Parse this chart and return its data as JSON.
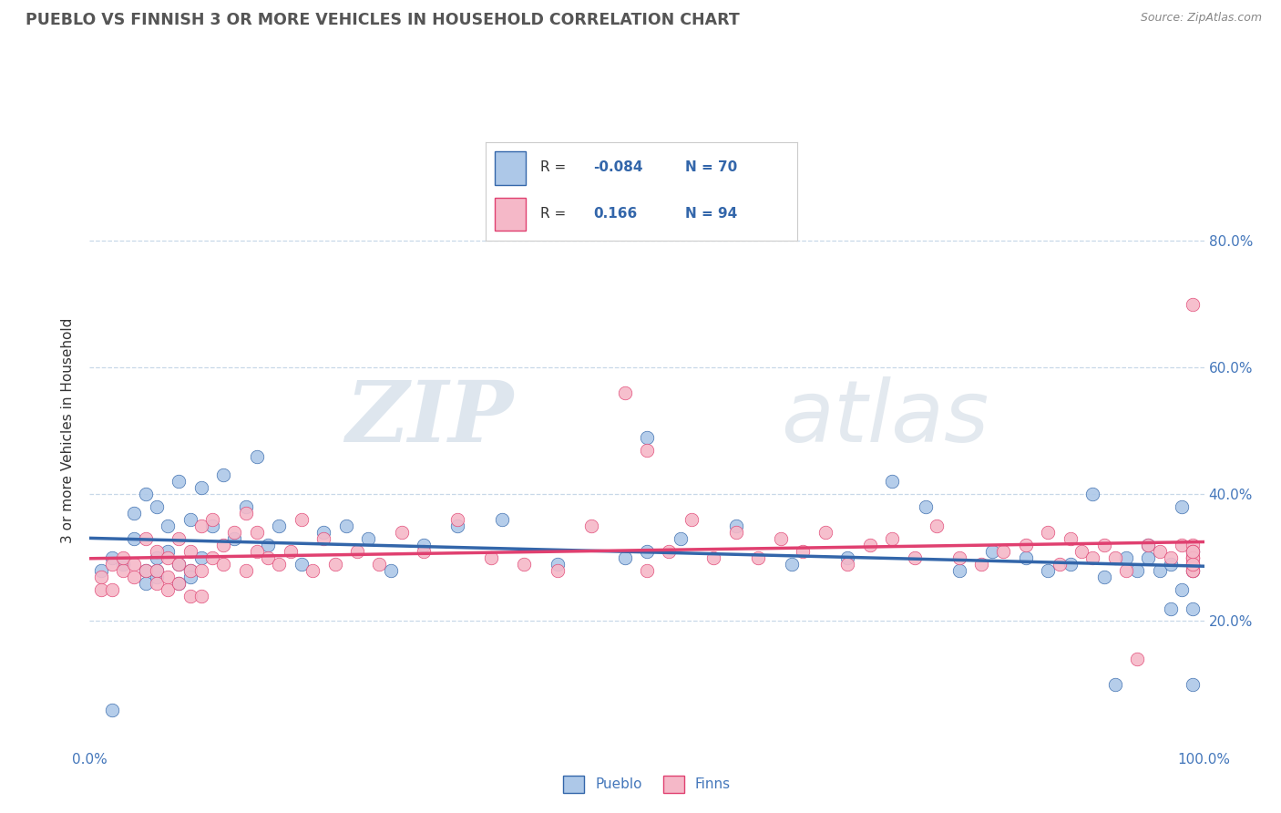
{
  "title": "PUEBLO VS FINNISH 3 OR MORE VEHICLES IN HOUSEHOLD CORRELATION CHART",
  "source": "Source: ZipAtlas.com",
  "ylabel": "3 or more Vehicles in Household",
  "watermark_zip": "ZIP",
  "watermark_atlas": "atlas",
  "pueblo_R": -0.084,
  "pueblo_N": 70,
  "finns_R": 0.166,
  "finns_N": 94,
  "pueblo_color": "#adc8e8",
  "finns_color": "#f5b8c8",
  "pueblo_line_color": "#3366aa",
  "finns_line_color": "#e04070",
  "background_color": "#ffffff",
  "grid_color": "#c8d8e8",
  "title_color": "#555555",
  "axis_label_color": "#4477bb",
  "right_tick_color": "#4477bb",
  "xlim": [
    0.0,
    1.0
  ],
  "ylim": [
    0.0,
    1.0
  ],
  "ytick_positions": [
    0.2,
    0.4,
    0.6,
    0.8
  ],
  "ytick_labels": [
    "20.0%",
    "40.0%",
    "60.0%",
    "80.0%"
  ],
  "pueblo_x": [
    0.02,
    0.03,
    0.04,
    0.04,
    0.05,
    0.05,
    0.05,
    0.06,
    0.06,
    0.06,
    0.07,
    0.07,
    0.08,
    0.08,
    0.08,
    0.09,
    0.09,
    0.09,
    0.1,
    0.1,
    0.11,
    0.12,
    0.13,
    0.14,
    0.15,
    0.16,
    0.17,
    0.19,
    0.21,
    0.23,
    0.25,
    0.27,
    0.3,
    0.33,
    0.37,
    0.42,
    0.48,
    0.53,
    0.58,
    0.63,
    0.68,
    0.72,
    0.75,
    0.78,
    0.81,
    0.84,
    0.86,
    0.88,
    0.9,
    0.91,
    0.92,
    0.93,
    0.94,
    0.95,
    0.95,
    0.96,
    0.97,
    0.97,
    0.98,
    0.98,
    0.99,
    0.99,
    0.99,
    0.99,
    0.99,
    0.01,
    0.02,
    0.06,
    0.5,
    0.5
  ],
  "pueblo_y": [
    0.3,
    0.29,
    0.37,
    0.33,
    0.4,
    0.28,
    0.26,
    0.38,
    0.3,
    0.27,
    0.35,
    0.31,
    0.42,
    0.29,
    0.26,
    0.36,
    0.28,
    0.27,
    0.41,
    0.3,
    0.35,
    0.43,
    0.33,
    0.38,
    0.46,
    0.32,
    0.35,
    0.29,
    0.34,
    0.35,
    0.33,
    0.28,
    0.32,
    0.35,
    0.36,
    0.29,
    0.3,
    0.33,
    0.35,
    0.29,
    0.3,
    0.42,
    0.38,
    0.28,
    0.31,
    0.3,
    0.28,
    0.29,
    0.4,
    0.27,
    0.1,
    0.3,
    0.28,
    0.32,
    0.3,
    0.28,
    0.29,
    0.22,
    0.25,
    0.38,
    0.22,
    0.1,
    0.29,
    0.31,
    0.28,
    0.28,
    0.06,
    0.28,
    0.49,
    0.31
  ],
  "finns_x": [
    0.01,
    0.02,
    0.03,
    0.03,
    0.04,
    0.04,
    0.05,
    0.05,
    0.06,
    0.06,
    0.06,
    0.07,
    0.07,
    0.07,
    0.08,
    0.08,
    0.08,
    0.09,
    0.09,
    0.09,
    0.1,
    0.1,
    0.1,
    0.11,
    0.11,
    0.12,
    0.12,
    0.13,
    0.14,
    0.14,
    0.15,
    0.15,
    0.16,
    0.17,
    0.18,
    0.19,
    0.2,
    0.21,
    0.22,
    0.24,
    0.26,
    0.28,
    0.3,
    0.33,
    0.36,
    0.39,
    0.42,
    0.45,
    0.48,
    0.5,
    0.52,
    0.54,
    0.56,
    0.58,
    0.6,
    0.62,
    0.64,
    0.66,
    0.68,
    0.7,
    0.72,
    0.74,
    0.76,
    0.78,
    0.8,
    0.82,
    0.84,
    0.86,
    0.87,
    0.88,
    0.89,
    0.9,
    0.91,
    0.92,
    0.93,
    0.94,
    0.95,
    0.96,
    0.97,
    0.98,
    0.99,
    0.99,
    0.99,
    0.99,
    0.99,
    0.99,
    0.99,
    0.99,
    0.99,
    0.99,
    0.99,
    0.01,
    0.02,
    0.5
  ],
  "finns_y": [
    0.27,
    0.29,
    0.28,
    0.3,
    0.29,
    0.27,
    0.33,
    0.28,
    0.31,
    0.28,
    0.26,
    0.3,
    0.27,
    0.25,
    0.33,
    0.29,
    0.26,
    0.31,
    0.28,
    0.24,
    0.35,
    0.28,
    0.24,
    0.36,
    0.3,
    0.32,
    0.29,
    0.34,
    0.37,
    0.28,
    0.31,
    0.34,
    0.3,
    0.29,
    0.31,
    0.36,
    0.28,
    0.33,
    0.29,
    0.31,
    0.29,
    0.34,
    0.31,
    0.36,
    0.3,
    0.29,
    0.28,
    0.35,
    0.56,
    0.28,
    0.31,
    0.36,
    0.3,
    0.34,
    0.3,
    0.33,
    0.31,
    0.34,
    0.29,
    0.32,
    0.33,
    0.3,
    0.35,
    0.3,
    0.29,
    0.31,
    0.32,
    0.34,
    0.29,
    0.33,
    0.31,
    0.3,
    0.32,
    0.3,
    0.28,
    0.14,
    0.32,
    0.31,
    0.3,
    0.32,
    0.3,
    0.28,
    0.7,
    0.3,
    0.29,
    0.32,
    0.31,
    0.28,
    0.3,
    0.29,
    0.31,
    0.25,
    0.25,
    0.47
  ]
}
